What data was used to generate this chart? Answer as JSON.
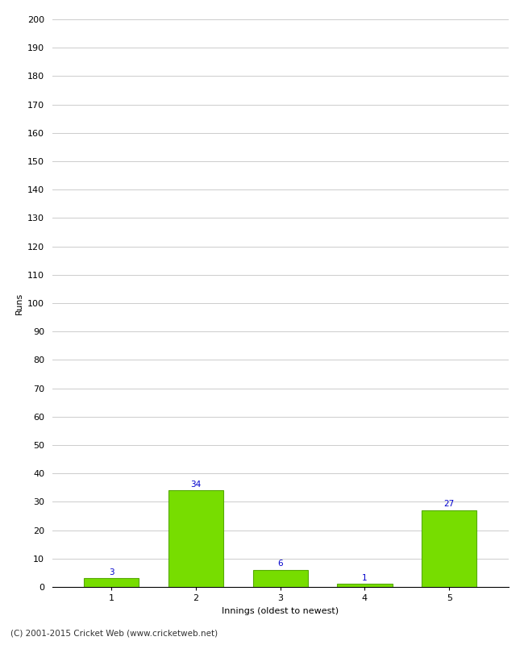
{
  "categories": [
    1,
    2,
    3,
    4,
    5
  ],
  "values": [
    3,
    34,
    6,
    1,
    27
  ],
  "bar_color": "#77dd00",
  "bar_edgecolor": "#55aa00",
  "xlabel": "Innings (oldest to newest)",
  "ylabel": "Runs",
  "ylim": [
    0,
    200
  ],
  "yticks": [
    0,
    10,
    20,
    30,
    40,
    50,
    60,
    70,
    80,
    90,
    100,
    110,
    120,
    130,
    140,
    150,
    160,
    170,
    180,
    190,
    200
  ],
  "label_color": "#0000cc",
  "label_fontsize": 7.5,
  "axis_fontsize": 8,
  "tick_fontsize": 8,
  "footer": "(C) 2001-2015 Cricket Web (www.cricketweb.net)",
  "footer_fontsize": 7.5,
  "background_color": "#ffffff",
  "grid_color": "#cccccc",
  "fig_width": 6.5,
  "fig_height": 8.0,
  "dpi": 100
}
